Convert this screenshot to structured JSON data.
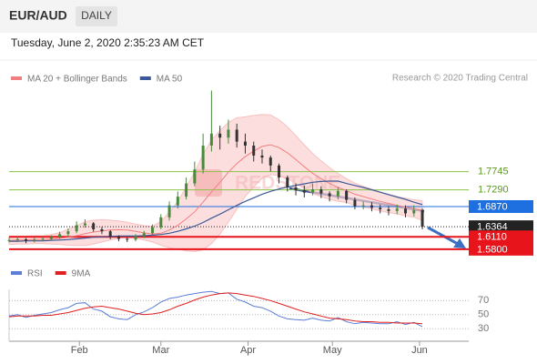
{
  "header": {
    "symbol": "EUR/AUD",
    "timeframe": "DAILY",
    "timestamp": "Tuesday, June 2, 2020 2:35:23 AM CET",
    "credit": "Research © 2020 Trading Central"
  },
  "chart_data": [
    {
      "type": "candlestick",
      "watermark": "REDSTONE",
      "up_color": "#4a8a3c",
      "down_color": "#333333",
      "xlim": [
        7,
        170.5
      ],
      "ylim": [
        1.55,
        2.05
      ],
      "xticks": [
        {
          "value": 32,
          "label": "Feb"
        },
        {
          "value": 61,
          "label": "Mar"
        },
        {
          "value": 92,
          "label": "Apr"
        },
        {
          "value": 122,
          "label": "May"
        },
        {
          "value": 153,
          "label": "Jun"
        }
      ],
      "x": [
        7,
        10,
        13,
        16,
        19,
        22,
        25,
        28,
        31,
        34,
        37,
        40,
        43,
        46,
        49,
        52,
        55,
        58,
        61,
        64,
        67,
        70,
        73,
        76,
        79,
        82,
        85,
        88,
        91,
        94,
        97,
        100,
        103,
        106,
        109,
        112,
        115,
        118,
        121,
        124,
        127,
        130,
        133,
        136,
        139,
        142,
        145,
        148,
        151,
        154
      ],
      "close": [
        1.603,
        1.605,
        1.601,
        1.604,
        1.606,
        1.61,
        1.618,
        1.625,
        1.64,
        1.645,
        1.63,
        1.625,
        1.612,
        1.606,
        1.604,
        1.612,
        1.62,
        1.635,
        1.66,
        1.69,
        1.712,
        1.745,
        1.78,
        1.84,
        1.87,
        1.86,
        1.88,
        1.85,
        1.84,
        1.815,
        1.81,
        1.79,
        1.76,
        1.735,
        1.728,
        1.722,
        1.73,
        1.72,
        1.713,
        1.726,
        1.704,
        1.688,
        1.69,
        1.684,
        1.68,
        1.676,
        1.682,
        1.67,
        1.678,
        1.6364
      ],
      "high": [
        1.61,
        1.612,
        1.608,
        1.609,
        1.611,
        1.615,
        1.624,
        1.632,
        1.65,
        1.655,
        1.648,
        1.636,
        1.628,
        1.615,
        1.61,
        1.618,
        1.626,
        1.642,
        1.668,
        1.7,
        1.725,
        1.76,
        1.8,
        1.87,
        1.978,
        1.89,
        1.905,
        1.895,
        1.87,
        1.85,
        1.83,
        1.815,
        1.795,
        1.765,
        1.745,
        1.74,
        1.745,
        1.738,
        1.725,
        1.735,
        1.73,
        1.71,
        1.7,
        1.698,
        1.692,
        1.688,
        1.692,
        1.69,
        1.69,
        1.682
      ],
      "low": [
        1.597,
        1.598,
        1.595,
        1.597,
        1.6,
        1.602,
        1.606,
        1.612,
        1.62,
        1.634,
        1.624,
        1.618,
        1.605,
        1.6,
        1.598,
        1.6,
        1.608,
        1.615,
        1.63,
        1.652,
        1.682,
        1.705,
        1.738,
        1.77,
        1.825,
        1.83,
        1.845,
        1.835,
        1.82,
        1.8,
        1.795,
        1.775,
        1.745,
        1.725,
        1.715,
        1.71,
        1.715,
        1.708,
        1.7,
        1.705,
        1.695,
        1.68,
        1.68,
        1.675,
        1.67,
        1.665,
        1.668,
        1.66,
        1.662,
        1.63
      ],
      "overlays": [
        {
          "name": "MA 20 + Bollinger Bands",
          "color": "#f08080",
          "band_color": "#fbd0d0",
          "values": [
            1.602,
            1.603,
            1.603,
            1.604,
            1.604,
            1.605,
            1.607,
            1.61,
            1.614,
            1.619,
            1.623,
            1.626,
            1.628,
            1.629,
            1.628,
            1.625,
            1.621,
            1.618,
            1.62,
            1.628,
            1.64,
            1.656,
            1.674,
            1.698,
            1.724,
            1.748,
            1.773,
            1.795,
            1.812,
            1.826,
            1.838,
            1.842,
            1.835,
            1.822,
            1.805,
            1.787,
            1.77,
            1.757,
            1.745,
            1.735,
            1.727,
            1.718,
            1.712,
            1.706,
            1.7,
            1.695,
            1.69,
            1.686,
            1.682,
            1.677
          ],
          "bands": [
            0.01,
            0.01,
            0.01,
            0.01,
            0.01,
            0.012,
            0.015,
            0.02,
            0.025,
            0.03,
            0.03,
            0.028,
            0.025,
            0.022,
            0.02,
            0.018,
            0.018,
            0.02,
            0.03,
            0.045,
            0.06,
            0.08,
            0.1,
            0.12,
            0.13,
            0.13,
            0.125,
            0.115,
            0.1,
            0.09,
            0.08,
            0.075,
            0.07,
            0.065,
            0.06,
            0.055,
            0.05,
            0.045,
            0.04,
            0.035,
            0.03,
            0.028,
            0.026,
            0.025,
            0.024,
            0.023,
            0.022,
            0.022,
            0.022,
            0.025
          ]
        },
        {
          "name": "MA 50",
          "color": "#3b5998",
          "values": [
            1.6,
            1.6,
            1.601,
            1.601,
            1.601,
            1.602,
            1.603,
            1.604,
            1.606,
            1.608,
            1.61,
            1.611,
            1.612,
            1.613,
            1.613,
            1.613,
            1.614,
            1.615,
            1.617,
            1.62,
            1.625,
            1.631,
            1.638,
            1.647,
            1.658,
            1.668,
            1.679,
            1.69,
            1.7,
            1.709,
            1.718,
            1.725,
            1.731,
            1.736,
            1.74,
            1.744,
            1.748,
            1.75,
            1.751,
            1.751,
            1.745,
            1.74,
            1.735,
            1.729,
            1.723,
            1.717,
            1.711,
            1.705,
            1.698,
            1.692
          ]
        }
      ],
      "levels": [
        {
          "value": 1.7745,
          "color": "#8bc34a",
          "kind": "resistance"
        },
        {
          "value": 1.729,
          "label": "1.7290",
          "color": "#8bc34a",
          "kind": "resistance"
        },
        {
          "value": 1.687,
          "label": "1.6870",
          "color": "#1e6fe0",
          "kind": "pivot"
        },
        {
          "value": 1.6364,
          "color": "#222222",
          "kind": "last"
        },
        {
          "value": 1.611,
          "label": "1.6110",
          "color": "#e8141b",
          "kind": "support"
        },
        {
          "value": 1.58,
          "label": "1.5800",
          "color": "#e8141b",
          "kind": "support"
        }
      ]
    },
    {
      "type": "line",
      "ylim": [
        16,
        86
      ],
      "yticks": [
        30,
        50,
        70
      ],
      "series": [
        {
          "name": "RSI",
          "color": "#5b7fd6",
          "values": [
            48,
            50,
            46,
            49,
            51,
            53,
            57,
            60,
            66,
            67,
            58,
            55,
            47,
            44,
            43,
            50,
            54,
            60,
            68,
            73,
            75,
            78,
            80,
            82,
            83,
            80,
            81,
            72,
            68,
            62,
            60,
            55,
            48,
            44,
            43,
            42,
            45,
            42,
            41,
            46,
            40,
            37,
            39,
            38,
            37,
            37,
            40,
            36,
            39,
            33
          ]
        },
        {
          "name": "9MA",
          "color": "#e02020",
          "values": [
            47,
            48,
            48,
            48,
            49,
            49,
            51,
            53,
            56,
            59,
            61,
            62,
            60,
            58,
            55,
            52,
            50,
            51,
            53,
            57,
            62,
            66,
            71,
            75,
            78,
            80,
            81,
            80,
            78,
            76,
            73,
            70,
            66,
            62,
            58,
            54,
            51,
            48,
            45,
            44,
            43,
            41,
            40,
            40,
            39,
            39,
            38,
            38,
            38,
            37
          ]
        }
      ]
    }
  ]
}
